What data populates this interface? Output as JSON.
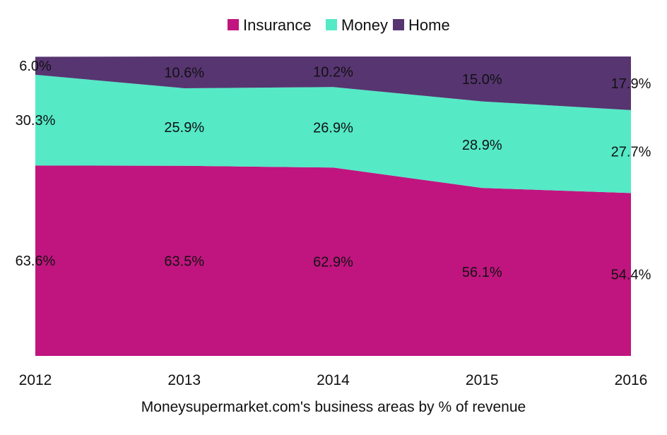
{
  "chart_data": {
    "type": "area",
    "stacked": true,
    "title": "",
    "xlabel": "Moneysupermarket.com's business areas by % of revenue",
    "ylabel": "",
    "ylim": [
      0,
      100
    ],
    "grid": false,
    "legend_position": "top-center",
    "categories": [
      "2012",
      "2013",
      "2014",
      "2015",
      "2016"
    ],
    "series": [
      {
        "name": "Insurance",
        "color": "#c0157f",
        "values": [
          63.6,
          63.5,
          62.9,
          56.1,
          54.4
        ],
        "labels": [
          "63.6%",
          "63.5%",
          "62.9%",
          "56.1%",
          "54.4%"
        ]
      },
      {
        "name": "Money",
        "color": "#55e9c6",
        "values": [
          30.3,
          25.9,
          26.9,
          28.9,
          27.7
        ],
        "labels": [
          "30.3%",
          "25.9%",
          "26.9%",
          "28.9%",
          "27.7%"
        ]
      },
      {
        "name": "Home",
        "color": "#573571",
        "values": [
          6.0,
          10.6,
          10.2,
          15.0,
          17.9
        ],
        "labels": [
          "6.0%",
          "10.6%",
          "10.2%",
          "15.0%",
          "17.9%"
        ]
      }
    ]
  }
}
